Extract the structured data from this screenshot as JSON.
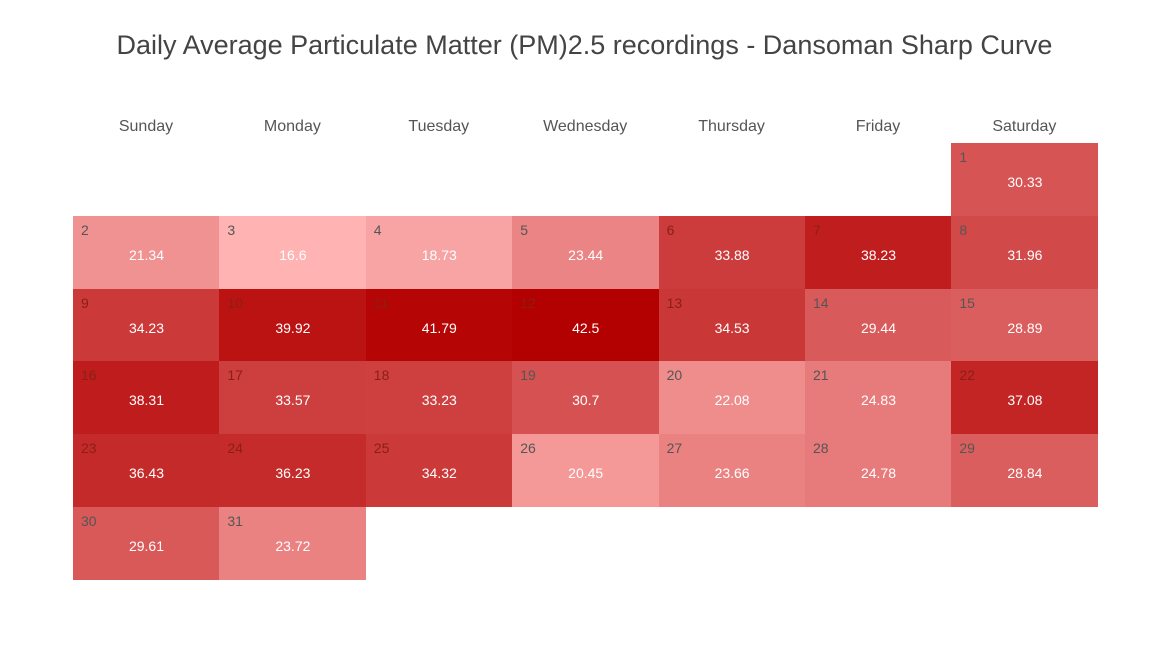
{
  "chart_data": {
    "type": "heatmap",
    "title": "Daily Average Particulate Matter (PM)2.5 recordings - Dansoman Sharp Curve",
    "weekdays": [
      "Sunday",
      "Monday",
      "Tuesday",
      "Wednesday",
      "Thursday",
      "Friday",
      "Saturday"
    ],
    "first_weekday_index": 6,
    "days": [
      {
        "day": 1,
        "value": 30.33
      },
      {
        "day": 2,
        "value": 21.34
      },
      {
        "day": 3,
        "value": 16.6
      },
      {
        "day": 4,
        "value": 18.73
      },
      {
        "day": 5,
        "value": 23.44
      },
      {
        "day": 6,
        "value": 33.88
      },
      {
        "day": 7,
        "value": 38.23
      },
      {
        "day": 8,
        "value": 31.96
      },
      {
        "day": 9,
        "value": 34.23
      },
      {
        "day": 10,
        "value": 39.92
      },
      {
        "day": 11,
        "value": 41.79
      },
      {
        "day": 12,
        "value": 42.5
      },
      {
        "day": 13,
        "value": 34.53
      },
      {
        "day": 14,
        "value": 29.44
      },
      {
        "day": 15,
        "value": 28.89
      },
      {
        "day": 16,
        "value": 38.31
      },
      {
        "day": 17,
        "value": 33.57
      },
      {
        "day": 18,
        "value": 33.23
      },
      {
        "day": 19,
        "value": 30.7
      },
      {
        "day": 20,
        "value": 22.08
      },
      {
        "day": 21,
        "value": 24.83
      },
      {
        "day": 22,
        "value": 37.08
      },
      {
        "day": 23,
        "value": 36.43
      },
      {
        "day": 24,
        "value": 36.23
      },
      {
        "day": 25,
        "value": 34.32
      },
      {
        "day": 26,
        "value": 20.45
      },
      {
        "day": 27,
        "value": 23.66
      },
      {
        "day": 28,
        "value": 24.78
      },
      {
        "day": 29,
        "value": 28.84
      },
      {
        "day": 30,
        "value": 29.61
      },
      {
        "day": 31,
        "value": 23.72
      }
    ],
    "color_scale": {
      "low": "#ffb3b3",
      "high": "#b30000"
    },
    "value_range": [
      16.6,
      42.5
    ]
  }
}
